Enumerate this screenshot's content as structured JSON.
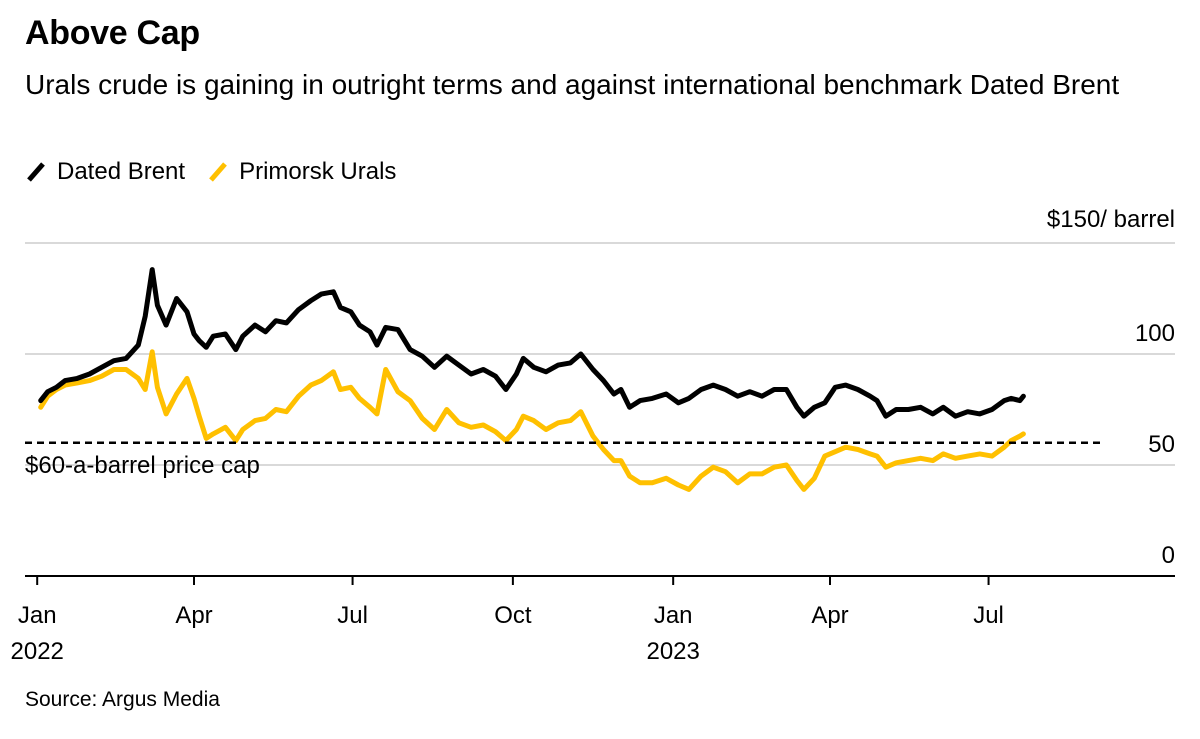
{
  "title": "Above Cap",
  "subtitle": "Urals crude is gaining in outright terms and against international benchmark Dated Brent",
  "source": "Source: Argus Media",
  "colors": {
    "brent": "#000000",
    "urals": "#ffc000",
    "grid": "#d9d9d9",
    "axis": "#000000"
  },
  "chart_data": {
    "type": "line",
    "title": "Above Cap",
    "y_unit_label": "$150/ barrel",
    "ylim": [
      0,
      150
    ],
    "yticks": [
      {
        "value": 150,
        "label": "$150/ barrel"
      },
      {
        "value": 100,
        "label": "100"
      },
      {
        "value": 50,
        "label": "50"
      },
      {
        "value": 0,
        "label": "0"
      }
    ],
    "xlim": [
      "2021-12-25",
      "2023-10-16"
    ],
    "xticks": [
      {
        "date": "2022-01-01",
        "label": "Jan",
        "year": "2022"
      },
      {
        "date": "2022-04-01",
        "label": "Apr",
        "year": ""
      },
      {
        "date": "2022-07-01",
        "label": "Jul",
        "year": ""
      },
      {
        "date": "2022-10-01",
        "label": "Oct",
        "year": ""
      },
      {
        "date": "2023-01-01",
        "label": "Jan",
        "year": "2023"
      },
      {
        "date": "2023-04-01",
        "label": "Apr",
        "year": ""
      },
      {
        "date": "2023-07-01",
        "label": "Jul",
        "year": ""
      }
    ],
    "grid": true,
    "legend_position": "top-left",
    "annotations": [
      {
        "type": "hline",
        "value": 60,
        "label": "$60-a-barrel price cap",
        "style": "dashed"
      }
    ],
    "series": [
      {
        "name": "Dated Brent",
        "color": "#000000",
        "points": [
          [
            "2022-01-03",
            79
          ],
          [
            "2022-01-07",
            83
          ],
          [
            "2022-01-12",
            85
          ],
          [
            "2022-01-17",
            88
          ],
          [
            "2022-01-24",
            89
          ],
          [
            "2022-01-31",
            91
          ],
          [
            "2022-02-07",
            94
          ],
          [
            "2022-02-14",
            97
          ],
          [
            "2022-02-21",
            98
          ],
          [
            "2022-02-28",
            104
          ],
          [
            "2022-03-04",
            117
          ],
          [
            "2022-03-08",
            138
          ],
          [
            "2022-03-11",
            122
          ],
          [
            "2022-03-16",
            113
          ],
          [
            "2022-03-22",
            125
          ],
          [
            "2022-03-28",
            119
          ],
          [
            "2022-04-01",
            109
          ],
          [
            "2022-04-04",
            106
          ],
          [
            "2022-04-08",
            103
          ],
          [
            "2022-04-12",
            108
          ],
          [
            "2022-04-19",
            109
          ],
          [
            "2022-04-25",
            102
          ],
          [
            "2022-04-29",
            108
          ],
          [
            "2022-05-06",
            113
          ],
          [
            "2022-05-12",
            110
          ],
          [
            "2022-05-18",
            115
          ],
          [
            "2022-05-24",
            114
          ],
          [
            "2022-05-31",
            120
          ],
          [
            "2022-06-07",
            124
          ],
          [
            "2022-06-13",
            127
          ],
          [
            "2022-06-20",
            128
          ],
          [
            "2022-06-24",
            121
          ],
          [
            "2022-06-30",
            119
          ],
          [
            "2022-07-05",
            113
          ],
          [
            "2022-07-11",
            110
          ],
          [
            "2022-07-15",
            104
          ],
          [
            "2022-07-20",
            112
          ],
          [
            "2022-07-27",
            111
          ],
          [
            "2022-08-03",
            102
          ],
          [
            "2022-08-10",
            99
          ],
          [
            "2022-08-17",
            94
          ],
          [
            "2022-08-24",
            99
          ],
          [
            "2022-08-31",
            95
          ],
          [
            "2022-09-07",
            91
          ],
          [
            "2022-09-14",
            93
          ],
          [
            "2022-09-21",
            90
          ],
          [
            "2022-09-27",
            84
          ],
          [
            "2022-10-03",
            91
          ],
          [
            "2022-10-07",
            98
          ],
          [
            "2022-10-13",
            94
          ],
          [
            "2022-10-20",
            92
          ],
          [
            "2022-10-27",
            95
          ],
          [
            "2022-11-03",
            96
          ],
          [
            "2022-11-09",
            100
          ],
          [
            "2022-11-16",
            93
          ],
          [
            "2022-11-22",
            88
          ],
          [
            "2022-11-28",
            82
          ],
          [
            "2022-12-02",
            84
          ],
          [
            "2022-12-07",
            76
          ],
          [
            "2022-12-13",
            79
          ],
          [
            "2022-12-20",
            80
          ],
          [
            "2022-12-28",
            82
          ],
          [
            "2023-01-04",
            78
          ],
          [
            "2023-01-10",
            80
          ],
          [
            "2023-01-17",
            84
          ],
          [
            "2023-01-24",
            86
          ],
          [
            "2023-01-31",
            84
          ],
          [
            "2023-02-07",
            81
          ],
          [
            "2023-02-14",
            83
          ],
          [
            "2023-02-21",
            81
          ],
          [
            "2023-02-28",
            84
          ],
          [
            "2023-03-07",
            84
          ],
          [
            "2023-03-13",
            76
          ],
          [
            "2023-03-17",
            72
          ],
          [
            "2023-03-23",
            76
          ],
          [
            "2023-03-29",
            78
          ],
          [
            "2023-04-04",
            85
          ],
          [
            "2023-04-10",
            86
          ],
          [
            "2023-04-17",
            84
          ],
          [
            "2023-04-24",
            81
          ],
          [
            "2023-04-28",
            79
          ],
          [
            "2023-05-03",
            72
          ],
          [
            "2023-05-09",
            75
          ],
          [
            "2023-05-16",
            75
          ],
          [
            "2023-05-23",
            76
          ],
          [
            "2023-05-30",
            73
          ],
          [
            "2023-06-05",
            76
          ],
          [
            "2023-06-12",
            72
          ],
          [
            "2023-06-19",
            74
          ],
          [
            "2023-06-26",
            73
          ],
          [
            "2023-07-03",
            75
          ],
          [
            "2023-07-10",
            79
          ],
          [
            "2023-07-14",
            80
          ],
          [
            "2023-07-19",
            79
          ],
          [
            "2023-07-21",
            81
          ]
        ]
      },
      {
        "name": "Primorsk Urals",
        "color": "#ffc000",
        "points": [
          [
            "2022-01-03",
            76
          ],
          [
            "2022-01-07",
            81
          ],
          [
            "2022-01-12",
            84
          ],
          [
            "2022-01-17",
            86
          ],
          [
            "2022-01-24",
            87
          ],
          [
            "2022-01-31",
            88
          ],
          [
            "2022-02-07",
            90
          ],
          [
            "2022-02-14",
            93
          ],
          [
            "2022-02-21",
            93
          ],
          [
            "2022-02-28",
            89
          ],
          [
            "2022-03-04",
            84
          ],
          [
            "2022-03-08",
            101
          ],
          [
            "2022-03-11",
            85
          ],
          [
            "2022-03-16",
            73
          ],
          [
            "2022-03-22",
            82
          ],
          [
            "2022-03-28",
            89
          ],
          [
            "2022-04-01",
            80
          ],
          [
            "2022-04-04",
            72
          ],
          [
            "2022-04-08",
            62
          ],
          [
            "2022-04-12",
            64
          ],
          [
            "2022-04-19",
            67
          ],
          [
            "2022-04-25",
            61
          ],
          [
            "2022-04-29",
            66
          ],
          [
            "2022-05-06",
            70
          ],
          [
            "2022-05-12",
            71
          ],
          [
            "2022-05-18",
            75
          ],
          [
            "2022-05-24",
            74
          ],
          [
            "2022-05-31",
            81
          ],
          [
            "2022-06-07",
            86
          ],
          [
            "2022-06-13",
            88
          ],
          [
            "2022-06-20",
            92
          ],
          [
            "2022-06-24",
            84
          ],
          [
            "2022-06-30",
            85
          ],
          [
            "2022-07-05",
            80
          ],
          [
            "2022-07-11",
            76
          ],
          [
            "2022-07-15",
            73
          ],
          [
            "2022-07-20",
            93
          ],
          [
            "2022-07-27",
            83
          ],
          [
            "2022-08-03",
            79
          ],
          [
            "2022-08-10",
            71
          ],
          [
            "2022-08-17",
            66
          ],
          [
            "2022-08-24",
            75
          ],
          [
            "2022-08-31",
            69
          ],
          [
            "2022-09-07",
            67
          ],
          [
            "2022-09-14",
            68
          ],
          [
            "2022-09-21",
            65
          ],
          [
            "2022-09-27",
            61
          ],
          [
            "2022-10-03",
            66
          ],
          [
            "2022-10-07",
            72
          ],
          [
            "2022-10-13",
            70
          ],
          [
            "2022-10-20",
            66
          ],
          [
            "2022-10-27",
            69
          ],
          [
            "2022-11-03",
            70
          ],
          [
            "2022-11-09",
            74
          ],
          [
            "2022-11-16",
            63
          ],
          [
            "2022-11-22",
            57
          ],
          [
            "2022-11-28",
            52
          ],
          [
            "2022-12-02",
            52
          ],
          [
            "2022-12-07",
            45
          ],
          [
            "2022-12-13",
            42
          ],
          [
            "2022-12-20",
            42
          ],
          [
            "2022-12-28",
            44
          ],
          [
            "2023-01-04",
            41
          ],
          [
            "2023-01-10",
            39
          ],
          [
            "2023-01-17",
            45
          ],
          [
            "2023-01-24",
            49
          ],
          [
            "2023-01-31",
            47
          ],
          [
            "2023-02-07",
            42
          ],
          [
            "2023-02-14",
            46
          ],
          [
            "2023-02-21",
            46
          ],
          [
            "2023-02-28",
            49
          ],
          [
            "2023-03-07",
            50
          ],
          [
            "2023-03-13",
            43
          ],
          [
            "2023-03-17",
            39
          ],
          [
            "2023-03-23",
            44
          ],
          [
            "2023-03-29",
            54
          ],
          [
            "2023-04-04",
            56
          ],
          [
            "2023-04-10",
            58
          ],
          [
            "2023-04-17",
            57
          ],
          [
            "2023-04-24",
            55
          ],
          [
            "2023-04-28",
            54
          ],
          [
            "2023-05-03",
            49
          ],
          [
            "2023-05-09",
            51
          ],
          [
            "2023-05-16",
            52
          ],
          [
            "2023-05-23",
            53
          ],
          [
            "2023-05-30",
            52
          ],
          [
            "2023-06-05",
            55
          ],
          [
            "2023-06-12",
            53
          ],
          [
            "2023-06-19",
            54
          ],
          [
            "2023-06-26",
            55
          ],
          [
            "2023-07-03",
            54
          ],
          [
            "2023-07-10",
            58
          ],
          [
            "2023-07-14",
            61
          ],
          [
            "2023-07-19",
            63
          ],
          [
            "2023-07-21",
            64
          ]
        ]
      }
    ]
  }
}
